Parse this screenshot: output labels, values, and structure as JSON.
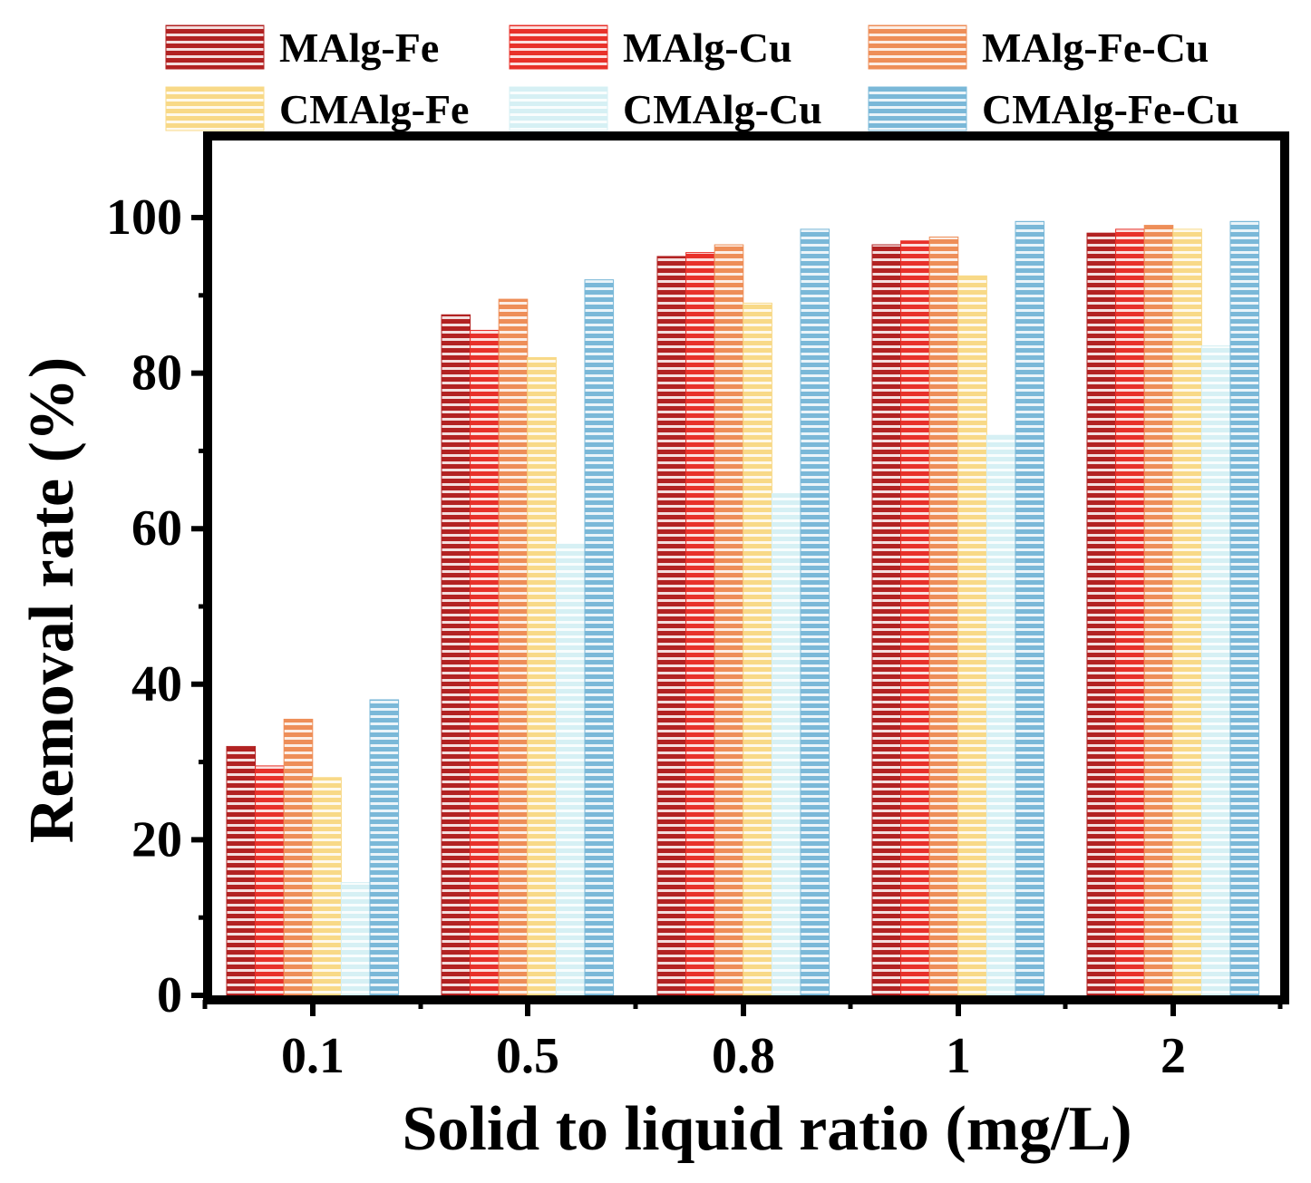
{
  "chart_data": {
    "type": "bar",
    "title": "",
    "xlabel": "Solid to liquid ratio (mg/L)",
    "ylabel": "Removal rate (%)",
    "categories": [
      "0.1",
      "0.5",
      "0.8",
      "1",
      "2"
    ],
    "ylim": [
      0,
      110
    ],
    "yticks": [
      "0",
      "20",
      "40",
      "60",
      "80",
      "100"
    ],
    "grid": false,
    "legend_position": "top",
    "series": [
      {
        "name": "MAlg-Fe",
        "color": "#b22222",
        "stripe": "#ffffff",
        "values": [
          32,
          87.5,
          95,
          96.5,
          98
        ]
      },
      {
        "name": "MAlg-Cu",
        "color": "#e8312a",
        "stripe": "#ffffff",
        "values": [
          29.5,
          85.5,
          95.5,
          97,
          98.5
        ]
      },
      {
        "name": "MAlg-Fe-Cu",
        "color": "#ee8e58",
        "stripe": "#ffffff",
        "values": [
          35.5,
          89.5,
          96.5,
          97.5,
          99
        ]
      },
      {
        "name": "CMAlg-Fe",
        "color": "#f8d987",
        "stripe": "#ffffff",
        "values": [
          28,
          82,
          89,
          92.5,
          98.5
        ]
      },
      {
        "name": "CMAlg-Cu",
        "color": "#d6f0f4",
        "stripe": "#ffffff",
        "values": [
          14.5,
          58,
          64.5,
          72,
          83.5
        ]
      },
      {
        "name": "CMAlg-Fe-Cu",
        "color": "#7ab8d8",
        "stripe": "#ffffff",
        "values": [
          38,
          92,
          98.5,
          99.5,
          99.5
        ]
      }
    ]
  }
}
